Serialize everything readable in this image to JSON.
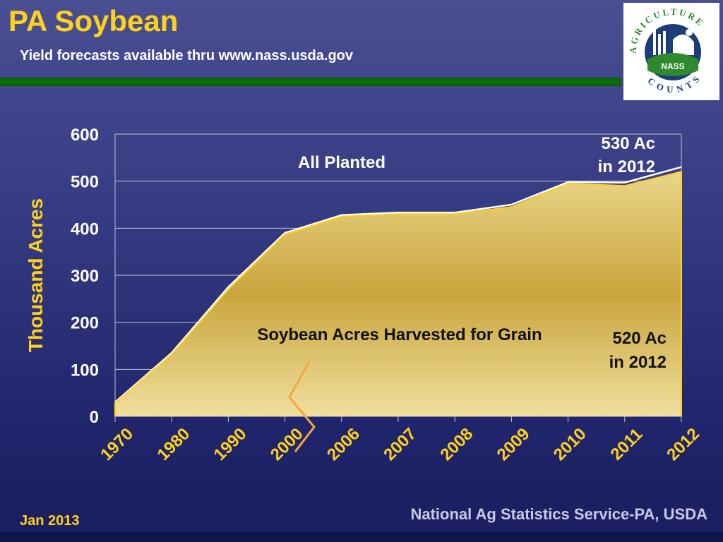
{
  "header": {
    "title": "PA Soybean",
    "subtitle": "Yield forecasts available thru www.nass.usda.gov"
  },
  "logo": {
    "arc_top": "AGRICULTURE",
    "arc_bottom": "COUNTS",
    "badge": "NASS"
  },
  "footer": {
    "date": "Jan 2013",
    "source": "National Ag Statistics Service-PA, USDA"
  },
  "colors": {
    "title": "#ffd21a",
    "rule": "#0b6b0b",
    "fill": "#d9b94f",
    "planted_line": "#ffffff",
    "harvested_line": "#ffd21a",
    "break_mark": "#f2a93b"
  },
  "chart_data": {
    "type": "area",
    "ylabel": "Thousand Acres",
    "xlabel": "",
    "categories": [
      "1970",
      "1980",
      "1990",
      "2000",
      "2006",
      "2007",
      "2008",
      "2009",
      "2010",
      "2011",
      "2012"
    ],
    "ylim": [
      0,
      600
    ],
    "yticks": [
      0,
      100,
      200,
      300,
      400,
      500,
      600
    ],
    "grid": true,
    "axis_break_between": [
      "2000",
      "2006"
    ],
    "series": [
      {
        "values": [
          30,
          135,
          275,
          390,
          428,
          433,
          433,
          450,
          498,
          497,
          530
        ]
      },
      {
        "values": [
          28,
          132,
          270,
          387,
          425,
          430,
          430,
          445,
          495,
          490,
          520
        ]
      }
    ],
    "annotations": [
      {
        "text": "All Planted"
      },
      {
        "text": "530 Ac"
      },
      {
        "text": "in 2012"
      },
      {
        "text": "Soybean Acres Harvested for Grain"
      },
      {
        "text": "520 Ac"
      },
      {
        "text": "in 2012"
      }
    ]
  }
}
